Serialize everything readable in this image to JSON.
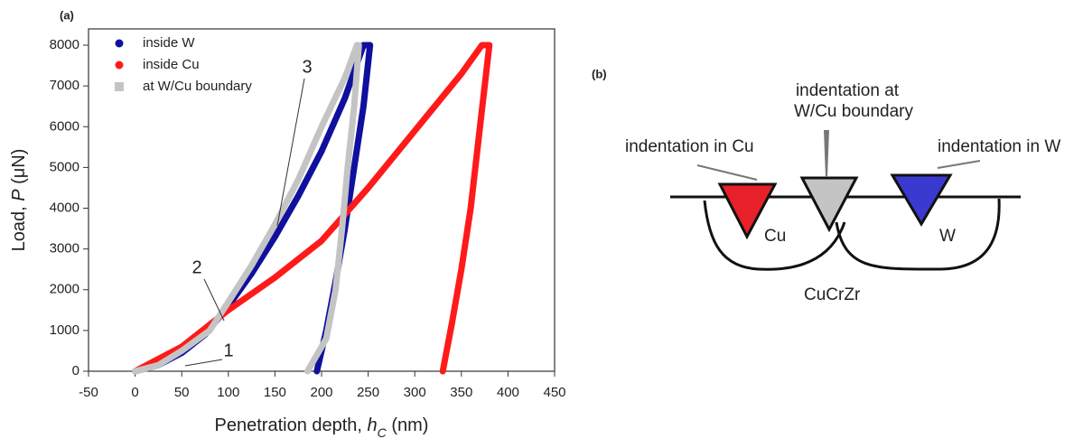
{
  "chart_data": {
    "type": "line",
    "title": "(a)",
    "x_label_parts": [
      "Penetration depth, ",
      "h",
      "C",
      " (nm)"
    ],
    "y_label_parts": [
      "Load, ",
      "P",
      " (μN)"
    ],
    "xlim": [
      -50,
      450
    ],
    "xticks": [
      -50,
      0,
      50,
      100,
      150,
      200,
      250,
      300,
      350,
      400,
      450
    ],
    "ylim": [
      0,
      8400
    ],
    "yticks": [
      0,
      1000,
      2000,
      3000,
      4000,
      5000,
      6000,
      7000,
      8000
    ],
    "legend": "upper left",
    "series": [
      {
        "name": "inside W",
        "color": "#10109e",
        "marker": "circle",
        "x": [
          0,
          25,
          50,
          75,
          100,
          125,
          150,
          175,
          200,
          225,
          245,
          252,
          245,
          235,
          225,
          215,
          205,
          195
        ],
        "values": [
          0,
          150,
          450,
          900,
          1600,
          2400,
          3300,
          4300,
          5400,
          6700,
          8000,
          8000,
          6500,
          5000,
          3500,
          2200,
          1000,
          0
        ]
      },
      {
        "name": "inside Cu",
        "color": "#ff1a1a",
        "marker": "circle",
        "x": [
          0,
          50,
          100,
          150,
          200,
          250,
          300,
          350,
          372,
          380,
          370,
          360,
          350,
          340,
          330
        ],
        "values": [
          0,
          600,
          1500,
          2300,
          3200,
          4500,
          5900,
          7300,
          8000,
          8000,
          6000,
          4000,
          2500,
          1200,
          0
        ]
      },
      {
        "name": "at W/Cu boundary",
        "color": "#c4c4c4",
        "marker": "square",
        "x": [
          0,
          25,
          50,
          80,
          100,
          125,
          150,
          175,
          200,
          225,
          238,
          240,
          235,
          228,
          222,
          215,
          205,
          185
        ],
        "values": [
          0,
          150,
          500,
          1000,
          1700,
          2600,
          3600,
          4700,
          6000,
          7200,
          8000,
          8000,
          6500,
          5000,
          3500,
          2000,
          800,
          0
        ]
      }
    ],
    "annotations": [
      "1",
      "2",
      "3"
    ]
  },
  "diagram": {
    "panel_label": "(b)",
    "cu_indent": "indentation in Cu",
    "boundary_indent": [
      "indentation at",
      "W/Cu boundary"
    ],
    "w_indent": "indentation in W",
    "cu": "Cu",
    "w": "W",
    "matrix": "CuCrZr"
  }
}
